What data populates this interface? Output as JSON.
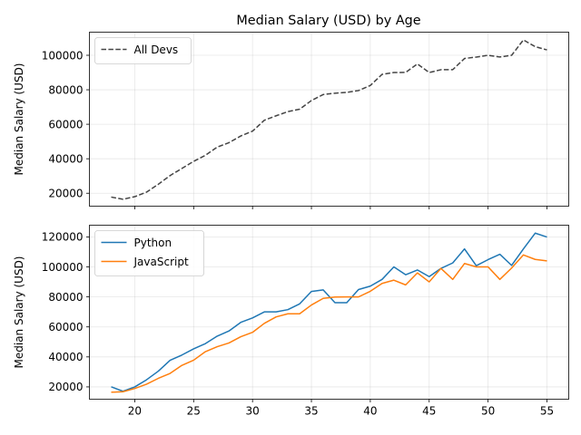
{
  "chart_data": [
    {
      "type": "line",
      "title": "Median Salary (USD) by Age",
      "xlabel": "",
      "ylabel": "Median Salary (USD)",
      "xlim": [
        16.15,
        56.85
      ],
      "ylim": [
        12500,
        113400
      ],
      "xticks": [
        20,
        25,
        30,
        35,
        40,
        45,
        50,
        55
      ],
      "show_xtick_labels": false,
      "yticks": [
        20000,
        40000,
        60000,
        80000,
        100000
      ],
      "grid": true,
      "legend": "top-left",
      "x": [
        18,
        19,
        20,
        21,
        22,
        23,
        24,
        25,
        26,
        27,
        28,
        29,
        30,
        31,
        32,
        33,
        34,
        35,
        36,
        37,
        38,
        39,
        40,
        41,
        42,
        43,
        44,
        45,
        46,
        47,
        48,
        49,
        50,
        51,
        52,
        53,
        54,
        55
      ],
      "series": [
        {
          "name": "All Devs",
          "color": "#444444",
          "dash": "dashed",
          "values": [
            17784,
            16500,
            18012,
            20628,
            25206,
            30252,
            34368,
            38496,
            42000,
            46752,
            49320,
            53200,
            56000,
            62316,
            64928,
            67317,
            68748,
            73752,
            77232,
            78000,
            78508,
            79536,
            82488,
            88935,
            90000,
            90056,
            95000,
            90000,
            91633,
            91660,
            98150,
            98964,
            100000,
            98988,
            100000,
            108923,
            105000,
            103117
          ]
        }
      ]
    },
    {
      "type": "line",
      "title": "",
      "xlabel": "",
      "ylabel": "Median Salary (USD)",
      "xlim": [
        16.15,
        56.85
      ],
      "ylim": [
        11800,
        127800
      ],
      "xticks": [
        20,
        25,
        30,
        35,
        40,
        45,
        50,
        55
      ],
      "show_xtick_labels": true,
      "yticks": [
        20000,
        40000,
        60000,
        80000,
        100000,
        120000
      ],
      "grid": true,
      "legend": "top-left",
      "x": [
        18,
        19,
        20,
        21,
        22,
        23,
        24,
        25,
        26,
        27,
        28,
        29,
        30,
        31,
        32,
        33,
        34,
        35,
        36,
        37,
        38,
        39,
        40,
        41,
        42,
        43,
        44,
        45,
        46,
        47,
        48,
        49,
        50,
        51,
        52,
        53,
        54,
        55
      ],
      "series": [
        {
          "name": "Python",
          "color": "#1f77b4",
          "dash": "solid",
          "values": [
            20046,
            17100,
            20000,
            24744,
            30500,
            37732,
            41247,
            45372,
            48876,
            53850,
            57287,
            63016,
            65998,
            70003,
            70000,
            71496,
            75370,
            83640,
            84666,
            76116,
            76116,
            84920,
            87190,
            91672,
            100000,
            94764,
            97961,
            93493,
            99000,
            102650,
            112000,
            100779,
            104856,
            108417,
            101000,
            112000,
            122500,
            119918
          ]
        },
        {
          "name": "JavaScript",
          "color": "#ff7f0e",
          "dash": "solid",
          "values": [
            16446,
            16791,
            18942,
            21780,
            25704,
            29000,
            34372,
            37810,
            43515,
            46823,
            49293,
            53437,
            56373,
            62375,
            66674,
            68745,
            68746,
            74583,
            79000,
            79894,
            80000,
            80000,
            83736,
            89000,
            91164,
            88000,
            96000,
            90000,
            99000,
            91661,
            102264,
            100000,
            100000,
            91660,
            99240,
            108000,
            105000,
            104000
          ]
        }
      ]
    }
  ]
}
